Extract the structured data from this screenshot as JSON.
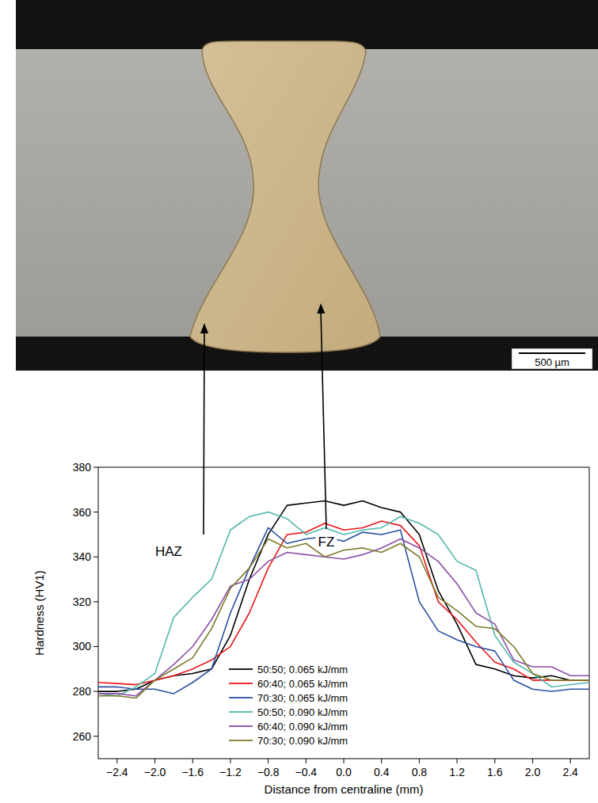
{
  "chart_data": {
    "type": "line",
    "x_label": "Distance from centraline (mm)",
    "y_label": "Hardness (HV1)",
    "x": [
      -2.6,
      -2.4,
      -2.2,
      -2.0,
      -1.8,
      -1.6,
      -1.4,
      -1.2,
      -1.0,
      -0.8,
      -0.6,
      -0.4,
      -0.2,
      0,
      0.2,
      0.4,
      0.6,
      0.8,
      1.0,
      1.2,
      1.4,
      1.6,
      1.8,
      2.0,
      2.2,
      2.4,
      2.6
    ],
    "series": [
      {
        "name": "50:50; 0.065 kJ/mm",
        "color": "#000000",
        "values": [
          280,
          280,
          281,
          285,
          287,
          288,
          290,
          305,
          330,
          350,
          363,
          364,
          365,
          363,
          365,
          362,
          360,
          350,
          325,
          310,
          292,
          290,
          287,
          286,
          287,
          285,
          285
        ]
      },
      {
        "name": "60:40; 0.065 kJ/mm",
        "color": "#e8171b",
        "values": [
          284,
          283.5,
          283,
          285,
          287,
          290,
          294,
          300,
          315,
          335,
          350,
          351,
          355,
          352,
          353,
          356,
          354,
          345,
          320,
          312,
          302,
          293,
          290,
          285,
          285,
          285,
          285
        ]
      },
      {
        "name": "70:30; 0.065 kJ/mm",
        "color": "#2a4fa0",
        "values": [
          282,
          282,
          281,
          281,
          279,
          284,
          290,
          315,
          335,
          353,
          346,
          348,
          349,
          347,
          351,
          350,
          352,
          320,
          307,
          303,
          300,
          298,
          285,
          281,
          280,
          281,
          281
        ]
      },
      {
        "name": "50:50; 0.090 kJ/mm",
        "color": "#53b7ab",
        "values": [
          279,
          278,
          282,
          288,
          313,
          322,
          330,
          352,
          358,
          360,
          357,
          350,
          353,
          350,
          352,
          353,
          358,
          355,
          350,
          338,
          334,
          305,
          293,
          288,
          282,
          283,
          284
        ]
      },
      {
        "name": "60:40; 0.090 kJ/mm",
        "color": "#8b4fa8",
        "values": [
          279,
          279,
          278,
          285,
          292,
          300,
          312,
          327,
          330,
          338,
          342,
          341,
          340,
          339,
          341,
          344,
          348,
          344,
          338,
          328,
          315,
          310,
          294,
          291,
          291,
          287,
          287
        ]
      },
      {
        "name": "70:30; 0.090 kJ/mm",
        "color": "#7d7a2a",
        "values": [
          278,
          278,
          277,
          285,
          290,
          295,
          308,
          326,
          335,
          348,
          344,
          346,
          340,
          343,
          344,
          342,
          346,
          340,
          322,
          316,
          309,
          308,
          300,
          288,
          285,
          285,
          285
        ]
      }
    ],
    "xlim": [
      -2.6,
      2.6
    ],
    "ylim": [
      250,
      380
    ],
    "xticks": [
      {
        "value": -2.4,
        "label": "−2.4"
      },
      {
        "value": -2,
        "label": "−2.0"
      },
      {
        "value": -1.6,
        "label": "−1.6"
      },
      {
        "value": -1.2,
        "label": "−1.2"
      },
      {
        "value": -0.8,
        "label": "−0.8"
      },
      {
        "value": -0.4,
        "label": "−0.4"
      },
      {
        "value": 0,
        "label": "0.0"
      },
      0.4,
      0.8,
      1.2,
      1.6,
      {
        "value": 2,
        "label": "2.0"
      },
      2.4
    ],
    "yticks": [
      260,
      280,
      300,
      320,
      340,
      360,
      380
    ],
    "grid": false,
    "legend": "lower center",
    "annotations": [
      {
        "text": "HAZ"
      },
      {
        "text": "FZ"
      }
    ],
    "scale_bar": "500 µm"
  }
}
